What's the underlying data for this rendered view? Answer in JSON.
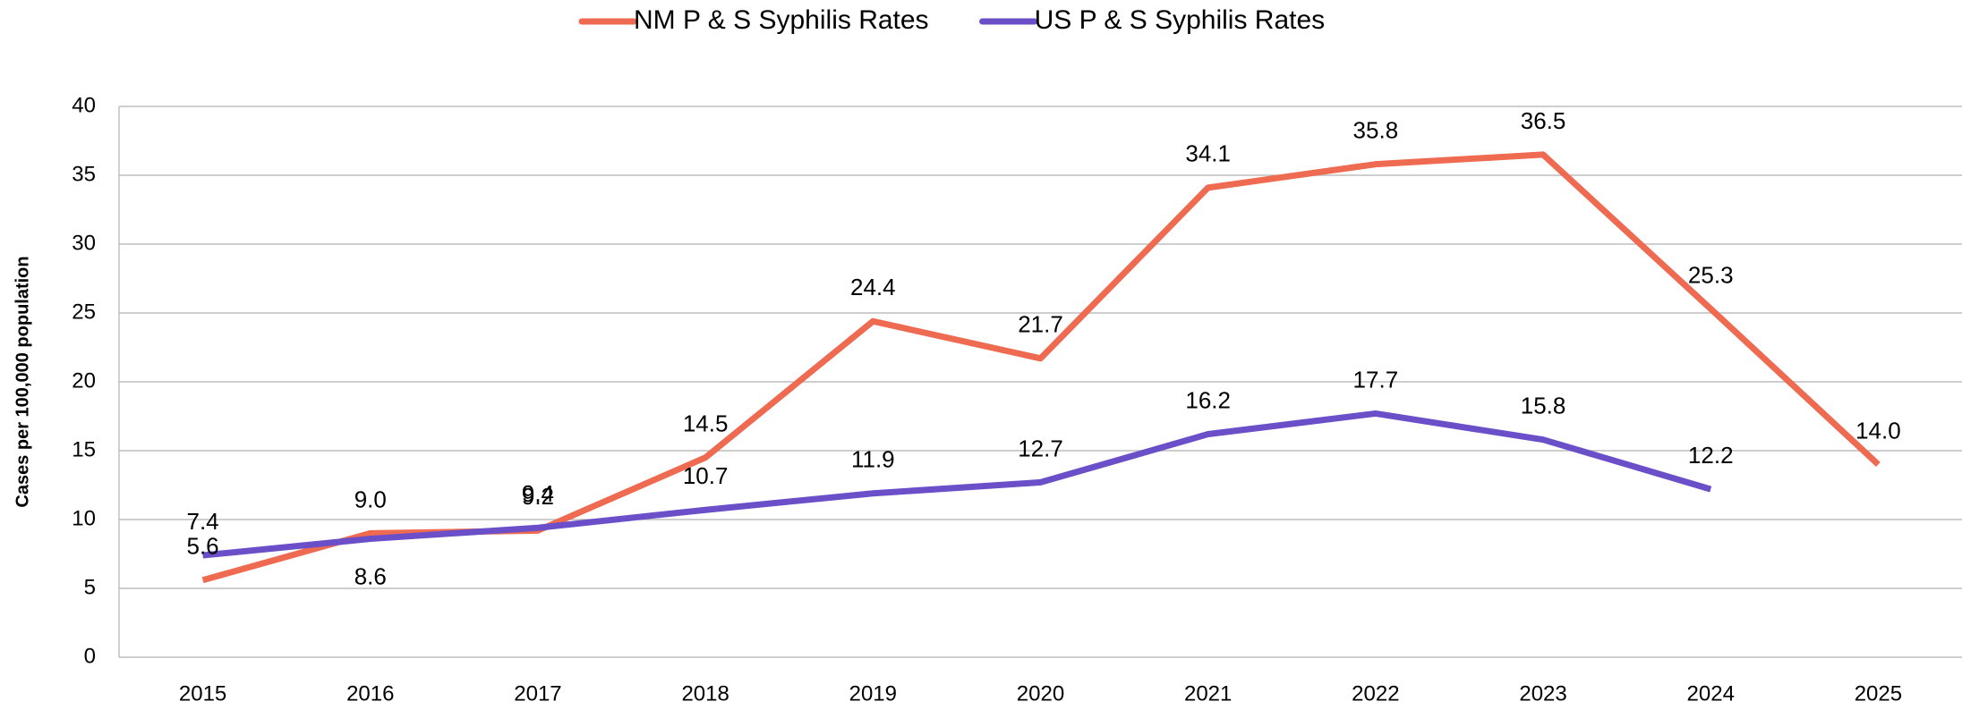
{
  "chart_data": {
    "type": "line",
    "y_label": "Cases per 100,000 population",
    "categories": [
      "2015",
      "2016",
      "2017",
      "2018",
      "2019",
      "2020",
      "2021",
      "2022",
      "2023",
      "2024",
      "2025"
    ],
    "series": [
      {
        "name": "NM P & S  Syphilis Rates",
        "color": "#ee6a50",
        "values": [
          5.6,
          9.0,
          9.2,
          14.5,
          24.4,
          21.7,
          34.1,
          35.8,
          36.5,
          25.3,
          14.0
        ],
        "value_labels": [
          "5.6",
          "9.0",
          "9.2",
          "14.5",
          "24.4",
          "21.7",
          "34.1",
          "35.8",
          "36.5",
          "25.3",
          "14.0"
        ]
      },
      {
        "name": "US P & S  Syphilis Rates",
        "color": "#6a4fc8",
        "values": [
          7.4,
          8.6,
          9.4,
          10.7,
          11.9,
          12.7,
          16.2,
          17.7,
          15.8,
          12.2,
          null
        ],
        "value_labels": [
          "7.4",
          "8.6",
          "9.4",
          "10.7",
          "11.9",
          "12.7",
          "16.2",
          "17.7",
          "15.8",
          "12.2",
          null
        ]
      }
    ],
    "ylim": [
      0,
      40
    ],
    "yticks": [
      0,
      5,
      10,
      15,
      20,
      25,
      30,
      35,
      40
    ],
    "grid": true,
    "legend": "top"
  }
}
